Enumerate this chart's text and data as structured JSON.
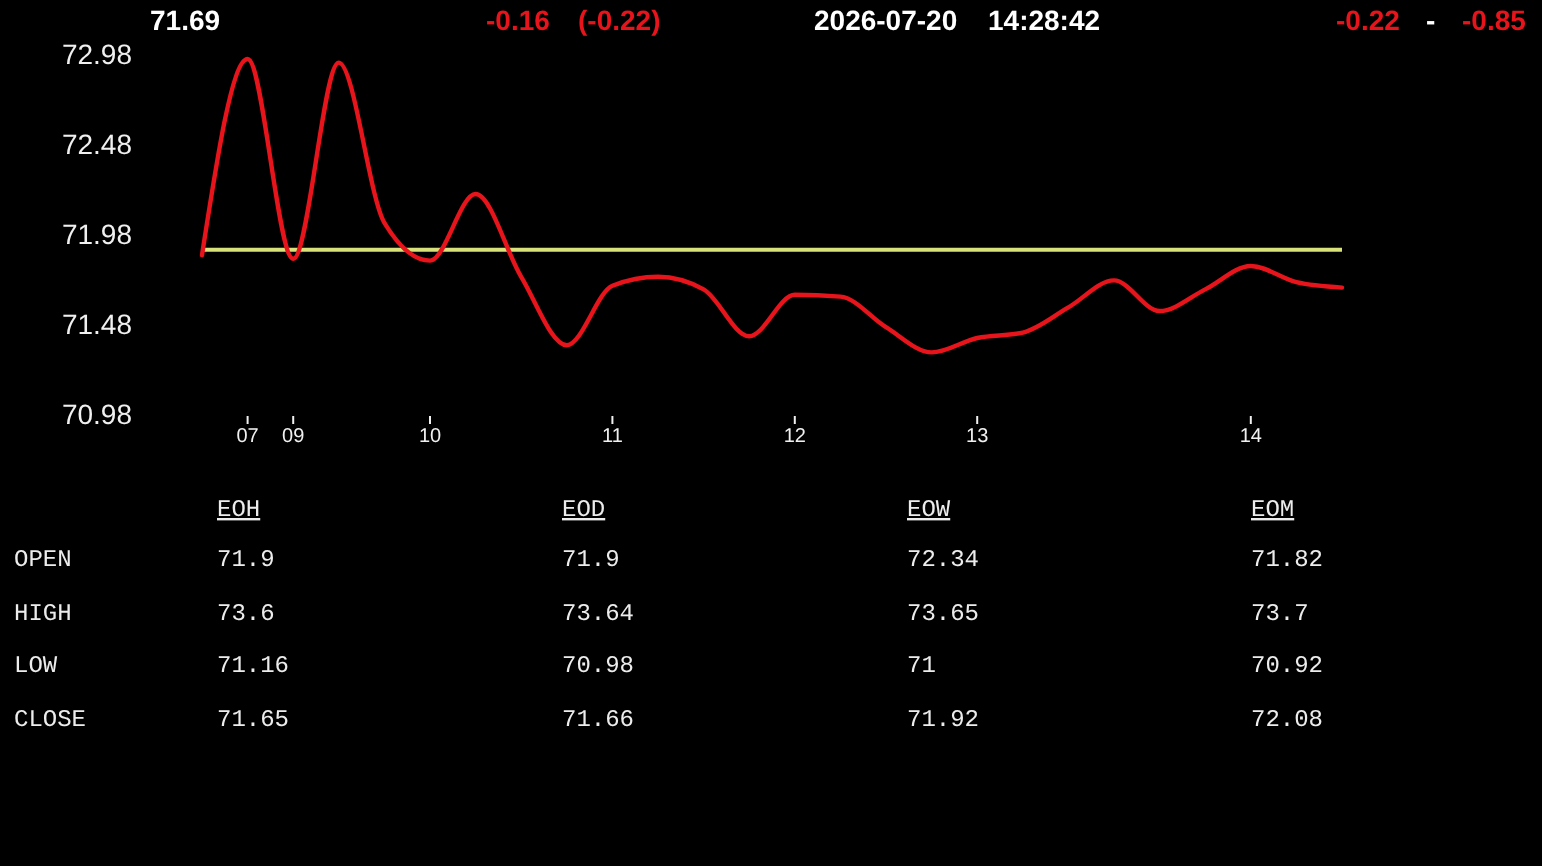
{
  "chart_data": [
    {
      "type": "line",
      "annotations": [
        "71.69",
        "-0.16",
        "(-0.22)",
        "2026-07-20",
        "14:28:42",
        "-0.22",
        "-",
        "-0.85"
      ],
      "categories": [
        null,
        "07",
        "09",
        null,
        null,
        "10",
        null,
        null,
        null,
        "11",
        null,
        null,
        null,
        "12",
        null,
        null,
        null,
        "13",
        null,
        null,
        null,
        null,
        null,
        "14",
        null,
        null
      ],
      "values": [
        71.87,
        72.96,
        71.85,
        72.94,
        72.05,
        71.84,
        72.21,
        71.75,
        71.37,
        71.7,
        71.75,
        71.68,
        71.42,
        71.65,
        71.64,
        71.47,
        71.33,
        71.41,
        71.44,
        71.58,
        71.73,
        71.56,
        71.68,
        71.81,
        71.72,
        71.69
      ],
      "color": "#e8141b",
      "ylim": [
        70.98,
        72.98
      ],
      "yticks": [
        70.98,
        71.48,
        71.98,
        72.48,
        72.98
      ],
      "ref_lines": [
        {
          "axis": "y",
          "value": 71.9,
          "color": "#d9e27a"
        }
      ]
    },
    {
      "type": "other",
      "categories": [
        "EOH",
        "EOD",
        "EOW",
        "EOM"
      ],
      "y_categories": [
        "OPEN",
        "HIGH",
        "LOW",
        "CLOSE"
      ],
      "cell_labels": [
        [
          "71.9",
          "71.9",
          "72.34",
          "71.82"
        ],
        [
          "73.6",
          "73.64",
          "73.65",
          "73.7"
        ],
        [
          "71.16",
          "70.98",
          "71",
          "70.92"
        ],
        [
          "71.65",
          "71.66",
          "71.92",
          "72.08"
        ]
      ]
    }
  ]
}
